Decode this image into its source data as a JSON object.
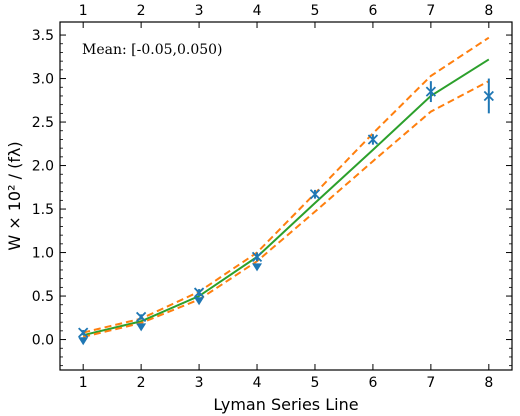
{
  "chart_data": {
    "type": "line",
    "xlabel": "Lyman Series Line",
    "ylabel": "W × 10² / (fλ)",
    "xlim": [
      0.6,
      8.4
    ],
    "ylim": [
      -0.35,
      3.65
    ],
    "xticks": [
      1,
      2,
      3,
      4,
      5,
      6,
      7,
      8
    ],
    "yticks": [
      0.0,
      0.5,
      1.0,
      1.5,
      2.0,
      2.5,
      3.0,
      3.5
    ],
    "grid": false,
    "annotation": "Mean: [-0.05,0.050)",
    "colors": {
      "model": "#2ca02c",
      "band": "#ff7f0e",
      "data": "#1f77b4"
    },
    "x": [
      1,
      2,
      3,
      4,
      5,
      6,
      7,
      8
    ],
    "series": [
      {
        "values": [
          0.05,
          0.21,
          0.5,
          0.95,
          1.57,
          2.18,
          2.8,
          3.22
        ]
      },
      {
        "values": [
          0.08,
          0.24,
          0.55,
          1.0,
          1.68,
          2.37,
          3.03,
          3.47
        ]
      },
      {
        "values": [
          0.03,
          0.19,
          0.46,
          0.9,
          1.47,
          2.05,
          2.62,
          2.97
        ]
      }
    ],
    "measurements": [
      {
        "x": 1,
        "y": 0.08,
        "err": 0.03
      },
      {
        "x": 2,
        "y": 0.26,
        "err": 0.03
      },
      {
        "x": 3,
        "y": 0.54,
        "err": 0.04
      },
      {
        "x": 4,
        "y": 0.95,
        "err": 0.05
      },
      {
        "x": 5,
        "y": 1.67,
        "err": 0.05
      },
      {
        "x": 6,
        "y": 2.3,
        "err": 0.06
      },
      {
        "x": 7,
        "y": 2.85,
        "err": 0.12
      },
      {
        "x": 8,
        "y": 2.8,
        "err": 0.2
      }
    ],
    "upper_limits": [
      {
        "x": 1,
        "y": -0.02
      },
      {
        "x": 2,
        "y": 0.14
      },
      {
        "x": 3,
        "y": 0.44
      },
      {
        "x": 4,
        "y": 0.83
      }
    ]
  }
}
